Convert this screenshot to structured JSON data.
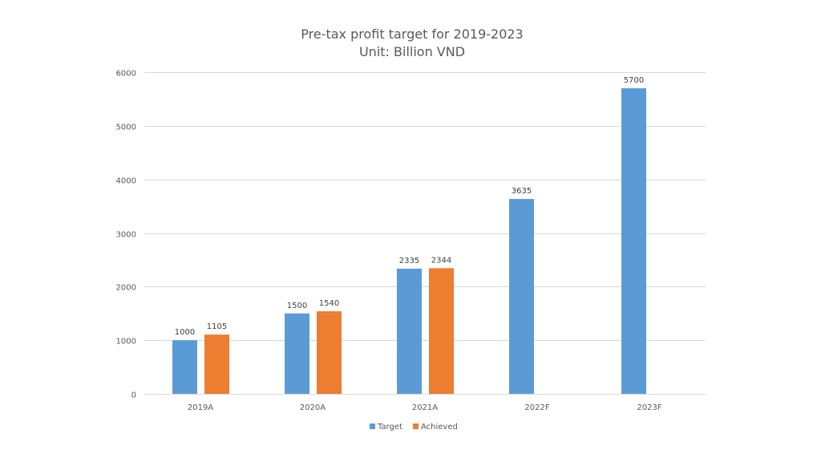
{
  "chart_data": {
    "type": "bar",
    "title": "Pre-tax profit target for 2019-2023",
    "subtitle": "Unit: Billion VND",
    "xlabel": "",
    "ylabel": "",
    "categories": [
      "2019A",
      "2020A",
      "2021A",
      "2022F",
      "2023F"
    ],
    "series": [
      {
        "name": "Target",
        "color": "#5B9BD5",
        "values": [
          1000,
          1500,
          2335,
          3635,
          5700
        ]
      },
      {
        "name": "Achieved",
        "color": "#ED7D31",
        "values": [
          1105,
          1540,
          2344,
          null,
          null
        ]
      }
    ],
    "ylim": [
      0,
      6000
    ],
    "yticks": [
      0,
      1000,
      2000,
      3000,
      4000,
      5000,
      6000
    ],
    "grid": true,
    "data_labels": true,
    "legend": "bottom"
  }
}
